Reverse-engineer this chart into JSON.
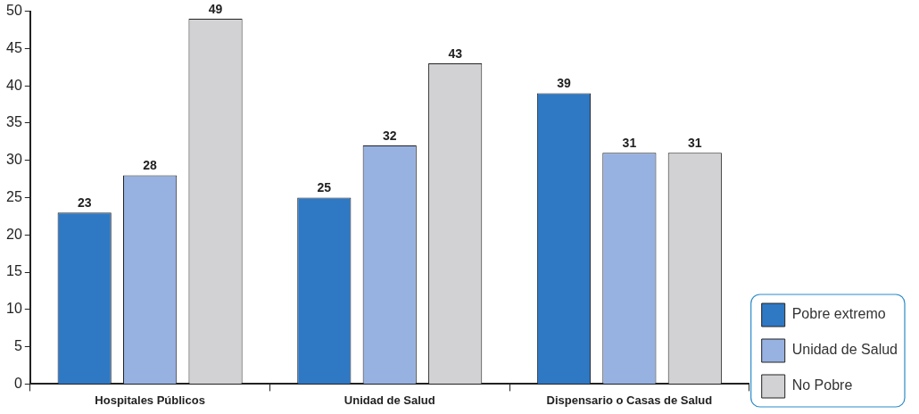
{
  "chart_data": {
    "type": "bar",
    "categories": [
      "Hospitales Públicos",
      "Unidad de Salud",
      "Dispensario o Casas de Salud"
    ],
    "series": [
      {
        "name": "Pobre extremo",
        "color": "#2f78c4",
        "values": [
          23,
          25,
          39
        ]
      },
      {
        "name": "Unidad de Salud",
        "color": "#97b1e0",
        "values": [
          28,
          32,
          31
        ]
      },
      {
        "name": "No Pobre",
        "color": "#d2d2d4",
        "values": [
          49,
          43,
          31
        ]
      }
    ],
    "ylim": [
      0,
      50
    ],
    "yticks": [
      0,
      5,
      10,
      15,
      20,
      25,
      30,
      35,
      40,
      45,
      50
    ],
    "grid": false,
    "legend": "right",
    "data_labels": true
  }
}
